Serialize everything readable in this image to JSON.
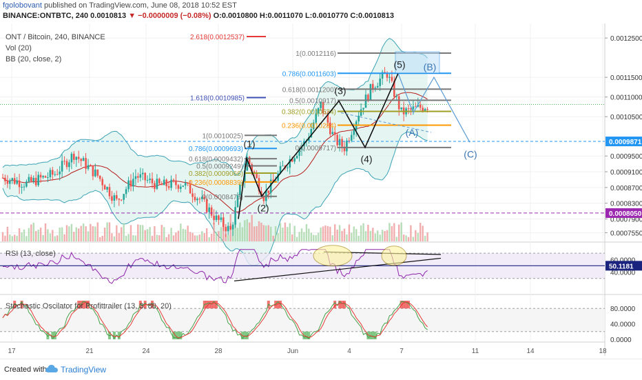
{
  "header": {
    "publisher": "fgolobovant",
    "published_text": "published on TradingView.com, June 08, 2018 10:52 EST",
    "symbol": "BINANCE:ONTBTC, 240",
    "last": "0.0010813",
    "change": "▼ −0.0000009 (−0.08%)",
    "ohlc": "O:0.0010800 H:0.0011070 L:0.0010770 C:0.0010813"
  },
  "legends": {
    "main": "ONT / Bitcoin, 240, BINANCE",
    "vol": "Vol (20)",
    "bb": "BB (20, close, 2)",
    "rsi": "RSI (13, close)",
    "stoch": "Stochastic Oscilator for Profittrailer (13, 3, 80, 20)"
  },
  "price_axis": {
    "ticks": [
      "0.0012500",
      "0.0011500",
      "0.0011000",
      "0.0010500",
      "0.0009500",
      "0.0009100",
      "0.0008700",
      "0.0008300",
      "0.0007900",
      "0.0007550"
    ],
    "current_label": "0.0009871",
    "current_color": "#2196f3",
    "support_label": "0.0008050",
    "support_color": "#9c27b0"
  },
  "rsi_axis": {
    "ticks": [
      "60.0000",
      "40.0000"
    ],
    "current_label": "50.1181",
    "current_color": "#1a237e"
  },
  "stoch_axis": {
    "ticks": [
      "80.0000",
      "40.0000",
      "0.0000"
    ]
  },
  "time_axis": {
    "labels": [
      "17",
      "21",
      "24",
      "28",
      "Jun",
      "4",
      "7",
      "11",
      "14",
      "18"
    ]
  },
  "fib_left": [
    {
      "label": "1(0.0010025)",
      "color": "#787878"
    },
    {
      "label": "0.786(0.0009693)",
      "color": "#2196f3"
    },
    {
      "label": "0.618(0.0009432)",
      "color": "#787878"
    },
    {
      "label": "0.5(0.0009249)",
      "color": "#787878"
    },
    {
      "label": "0.382(0.0009066)",
      "color": "#9e9d24"
    },
    {
      "label": "0.236(0.0008839)",
      "color": "#ff9800"
    },
    {
      "label": "0(0.0008473)",
      "color": "#787878"
    }
  ],
  "fib_right": [
    {
      "label": "1(0.0012116)",
      "color": "#787878"
    },
    {
      "label": "0.786(0.0011603)",
      "color": "#2196f3"
    },
    {
      "label": "0.618(0.0011200)",
      "color": "#787878"
    },
    {
      "label": "0.5(0.0010917)",
      "color": "#787878"
    },
    {
      "label": "0.382(0.0010634)",
      "color": "#9e9d24"
    },
    {
      "label": "0.236(0.0010284)",
      "color": "#ff9800"
    },
    {
      "label": "0(0.0009717)",
      "color": "#787878"
    }
  ],
  "extensions": [
    {
      "label": "2.618(0.0012537)",
      "color": "#e53935"
    },
    {
      "label": "1.618(0.0010985)",
      "color": "#3f51b5"
    }
  ],
  "wave_labels": [
    "(1)",
    "(2)",
    "(3)",
    "(4)",
    "(5)",
    "(A)",
    "(B)",
    "(C)"
  ],
  "chart_data": {
    "type": "candlestick",
    "title": "ONT / Bitcoin, 240, BINANCE",
    "overlays": [
      "Vol (20)",
      "BB (20, close, 2)"
    ],
    "price_range": [
      0.00074,
      0.00128
    ],
    "horizontal_levels": [
      0.0009871,
      0.000805
    ],
    "elliott_wave_pivots": [
      {
        "label": "(1)",
        "price": 0.000944
      },
      {
        "label": "(2)",
        "price": 0.000848
      },
      {
        "label": "(3)",
        "price": 0.00109
      },
      {
        "label": "(4)",
        "price": 0.000972
      },
      {
        "label": "(5)",
        "price": 0.00116
      }
    ],
    "subpanels": [
      {
        "name": "RSI (13, close)",
        "last": 50.1181,
        "levels": [
          60,
          40
        ]
      },
      {
        "name": "Stochastic Oscilator for Profittrailer",
        "levels": [
          80,
          40,
          0
        ]
      }
    ]
  }
}
